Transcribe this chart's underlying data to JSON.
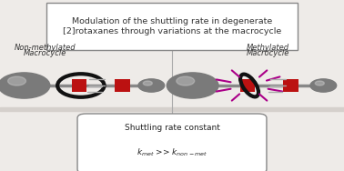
{
  "title_text": "Modulation of the shuttling rate in degenerate\n[2]rotaxanes through variations at the macrocycle",
  "left_label_line1": "Non-methylated",
  "left_label_line2": "Macrocycle",
  "right_label_line1": "Methylated",
  "right_label_line2": "Macrocycle",
  "bottom_title": "Shuttling rate constant",
  "bottom_formula": "$k_{met}$ >> $k_{non-met}$",
  "bg_color": "#eeebe8",
  "axle_color": "#888888",
  "stopper_color": "#7a7a7a",
  "ring_color": "#111111",
  "station_color": "#bb1111",
  "motion_color": "#aaaaaa",
  "methyl_color": "#aa0088",
  "divider_color": "#aaaaaa",
  "surface_color": "#d5d0cc",
  "title_edge": "#888888",
  "bottom_edge": "#888888"
}
